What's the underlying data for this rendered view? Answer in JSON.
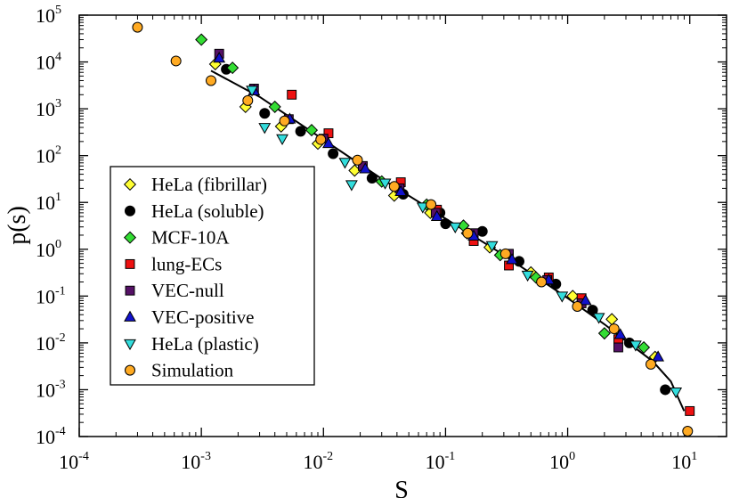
{
  "chart_data": {
    "type": "scatter",
    "title": "",
    "xlabel": "S",
    "ylabel": "p(s)",
    "xscale": "log",
    "yscale": "log",
    "xlim": [
      0.0001,
      20
    ],
    "ylim": [
      0.0001,
      100000
    ],
    "xticks": [
      {
        "value": 0.0001,
        "base": "10",
        "exp": "-4"
      },
      {
        "value": 0.001,
        "base": "10",
        "exp": "-3"
      },
      {
        "value": 0.01,
        "base": "10",
        "exp": "-2"
      },
      {
        "value": 0.1,
        "base": "10",
        "exp": "-1"
      },
      {
        "value": 1,
        "base": "10",
        "exp": "0"
      },
      {
        "value": 10,
        "base": "10",
        "exp": "1"
      }
    ],
    "yticks": [
      {
        "value": 0.0001,
        "base": "10",
        "exp": "-4"
      },
      {
        "value": 0.001,
        "base": "10",
        "exp": "-3"
      },
      {
        "value": 0.01,
        "base": "10",
        "exp": "-2"
      },
      {
        "value": 0.1,
        "base": "10",
        "exp": "-1"
      },
      {
        "value": 1,
        "base": "10",
        "exp": "0"
      },
      {
        "value": 10,
        "base": "10",
        "exp": "1"
      },
      {
        "value": 100,
        "base": "10",
        "exp": "2"
      },
      {
        "value": 1000,
        "base": "10",
        "exp": "3"
      },
      {
        "value": 10000,
        "base": "10",
        "exp": "4"
      },
      {
        "value": 100000,
        "base": "10",
        "exp": "5"
      }
    ],
    "legend_position": "center-left",
    "fit_line": {
      "x": [
        0.0012,
        0.003,
        0.01,
        0.03,
        0.1,
        0.3,
        1,
        2,
        3,
        5,
        7,
        9
      ],
      "y": [
        6500,
        1800,
        220,
        32,
        4.5,
        0.75,
        0.09,
        0.025,
        0.011,
        0.004,
        0.0015,
        0.00035
      ]
    },
    "series": [
      {
        "name": "HeLa (fibrillar)",
        "marker": "diamond",
        "color": "#ffff33",
        "x": [
          0.0013,
          0.0023,
          0.0045,
          0.009,
          0.018,
          0.038,
          0.075,
          0.15,
          0.23,
          0.5,
          1.1,
          2.3,
          5.2
        ],
        "y": [
          9000,
          1100,
          420,
          180,
          48,
          14,
          6,
          2.2,
          1.1,
          0.32,
          0.1,
          0.032,
          0.005
        ]
      },
      {
        "name": "HeLa (soluble)",
        "marker": "circle",
        "color": "#000000",
        "x": [
          0.0016,
          0.0033,
          0.0065,
          0.012,
          0.025,
          0.045,
          0.09,
          0.1,
          0.2,
          0.4,
          0.8,
          1.6,
          3.2,
          6.3
        ],
        "y": [
          7000,
          800,
          330,
          110,
          33,
          15,
          6,
          3.5,
          2.4,
          0.55,
          0.18,
          0.05,
          0.01,
          0.001
        ]
      },
      {
        "name": "MCF-10A",
        "marker": "diamond",
        "color": "#33dd33",
        "x": [
          0.001,
          0.0018,
          0.004,
          0.008,
          0.03,
          0.07,
          0.14,
          0.28,
          0.55,
          2,
          4.2
        ],
        "y": [
          30000,
          7500,
          1100,
          350,
          28,
          9,
          3.2,
          0.75,
          0.25,
          0.016,
          0.008
        ]
      },
      {
        "name": "lung-ECs",
        "marker": "square",
        "color": "#ee1111",
        "x": [
          0.0055,
          0.011,
          0.043,
          0.085,
          0.17,
          0.33,
          0.7,
          1.3,
          2.6,
          10
        ],
        "y": [
          2000,
          300,
          27,
          7,
          1.5,
          0.45,
          0.25,
          0.09,
          0.012,
          0.00035
        ]
      },
      {
        "name": "VEC-null",
        "marker": "square",
        "color": "#551166",
        "x": [
          0.0014,
          0.0027,
          0.0052,
          0.01,
          0.021,
          0.042,
          0.083,
          0.17,
          0.33,
          0.68,
          1.3,
          2.6
        ],
        "y": [
          15000,
          2700,
          600,
          230,
          60,
          20,
          6,
          2.2,
          0.8,
          0.22,
          0.07,
          0.008
        ]
      },
      {
        "name": "VEC-positive",
        "marker": "triangle-up",
        "color": "#1111cc",
        "x": [
          0.0014,
          0.0027,
          0.0053,
          0.011,
          0.022,
          0.043,
          0.085,
          0.17,
          0.35,
          0.7,
          1.4,
          2.7,
          5.5
        ],
        "y": [
          12000,
          2400,
          600,
          180,
          52,
          17,
          5,
          1.9,
          0.6,
          0.22,
          0.08,
          0.015,
          0.005
        ]
      },
      {
        "name": "HeLa (plastic)",
        "marker": "triangle-down",
        "color": "#33dddd",
        "x": [
          0.0026,
          0.0033,
          0.0046,
          0.015,
          0.017,
          0.032,
          0.065,
          0.12,
          0.24,
          0.47,
          0.9,
          1.8,
          3.6,
          7.7
        ],
        "y": [
          2500,
          400,
          230,
          72,
          24,
          26,
          8,
          3,
          1.2,
          0.28,
          0.1,
          0.035,
          0.009,
          0.0009
        ]
      },
      {
        "name": "Simulation",
        "marker": "circle",
        "color": "#ffaa22",
        "x": [
          0.0003,
          0.00062,
          0.0012,
          0.0024,
          0.0048,
          0.0095,
          0.019,
          0.038,
          0.076,
          0.152,
          0.31,
          0.61,
          1.2,
          2.4,
          4.8,
          9.6
        ],
        "y": [
          55000,
          10500,
          4000,
          1500,
          550,
          220,
          80,
          22,
          9,
          2.2,
          0.8,
          0.2,
          0.06,
          0.02,
          0.0035,
          0.00013
        ]
      }
    ]
  }
}
